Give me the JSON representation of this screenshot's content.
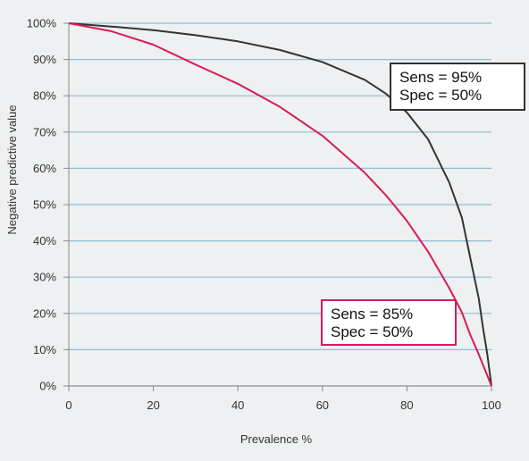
{
  "chart_data": {
    "type": "line",
    "title": "",
    "xlabel": "Prevalence %",
    "ylabel": "Negative predictive value",
    "xlim": [
      0,
      100
    ],
    "ylim": [
      0,
      100
    ],
    "x_ticks": [
      "0",
      "20",
      "40",
      "60",
      "80",
      "100"
    ],
    "y_ticks": [
      "0%",
      "10%",
      "20%",
      "30%",
      "40%",
      "50%",
      "60%",
      "70%",
      "80%",
      "90%",
      "100%"
    ],
    "grid": "horizontal",
    "colors": {
      "background": "#eef0f1",
      "grid": "#8fbfd6",
      "axis": "#888888"
    },
    "series": [
      {
        "color": "#333333",
        "x": [
          0,
          10,
          20,
          30,
          40,
          50,
          60,
          70,
          75,
          80,
          85,
          90,
          93,
          95,
          97,
          98,
          99,
          100
        ],
        "y": [
          100,
          99.1,
          98.1,
          96.7,
          95.0,
          92.6,
          89.3,
          84.4,
          80.6,
          75.4,
          68.0,
          56.1,
          46.4,
          35.3,
          24.1,
          16.1,
          8.8,
          0
        ]
      },
      {
        "color": "#d81b5a",
        "x": [
          0,
          10,
          20,
          30,
          40,
          50,
          60,
          70,
          75,
          80,
          85,
          90,
          93,
          95,
          97,
          98,
          99,
          100
        ],
        "y": [
          100,
          97.8,
          94.1,
          88.6,
          83.3,
          76.9,
          69.0,
          58.8,
          52.6,
          45.5,
          37.0,
          27.0,
          20.3,
          14.1,
          8.7,
          5.8,
          2.9,
          0
        ]
      }
    ],
    "annotations": [
      {
        "lines": [
          "Sens = 95%",
          "Spec = 50%"
        ],
        "color": "#333333",
        "series": 0
      },
      {
        "lines": [
          "Sens = 85%",
          "Spec = 50%"
        ],
        "color": "#d81b5a",
        "series": 1
      }
    ]
  }
}
